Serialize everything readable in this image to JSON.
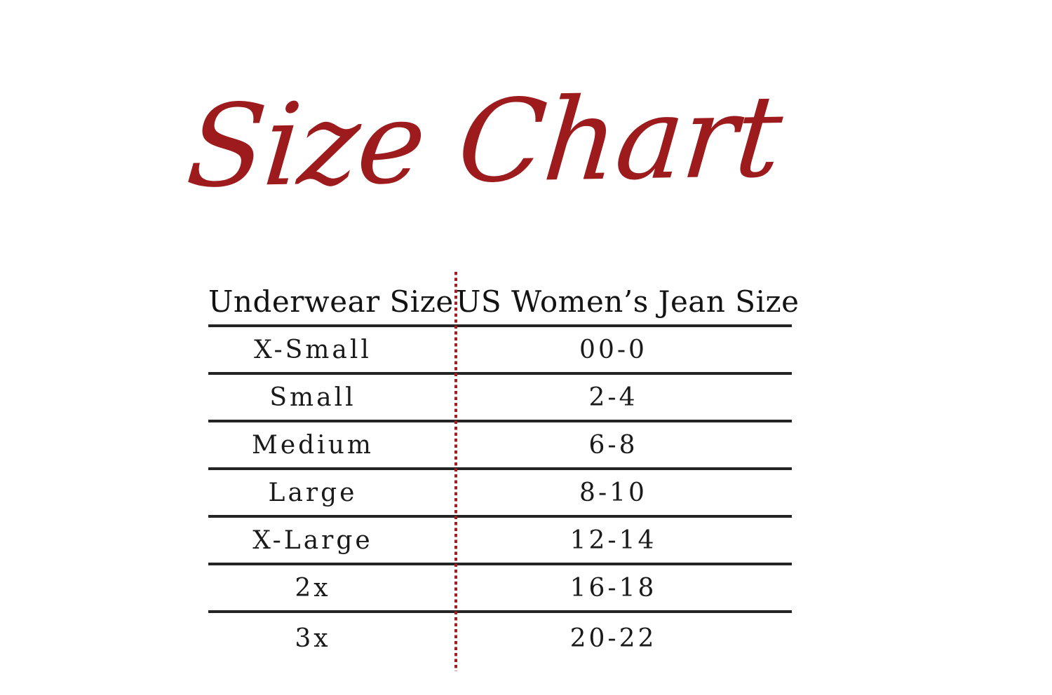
{
  "title": "Size Chart",
  "table": {
    "columns": {
      "underwear": "Underwear Size",
      "jean": "US Women’s Jean Size"
    },
    "rows": [
      {
        "size": "X-Small",
        "jean": "00-0"
      },
      {
        "size": "Small",
        "jean": "2-4"
      },
      {
        "size": "Medium",
        "jean": "6-8"
      },
      {
        "size": "Large",
        "jean": "8-10"
      },
      {
        "size": "X-Large",
        "jean": "12-14"
      },
      {
        "size": "2x",
        "jean": "16-18"
      },
      {
        "size": "3x",
        "jean": "20-22"
      }
    ]
  },
  "colors": {
    "title_red": "#9D1B1C",
    "divider_red": "#A31F1F",
    "line_color": "#242424",
    "text_color": "#1a1a1a",
    "background": "#ffffff"
  }
}
